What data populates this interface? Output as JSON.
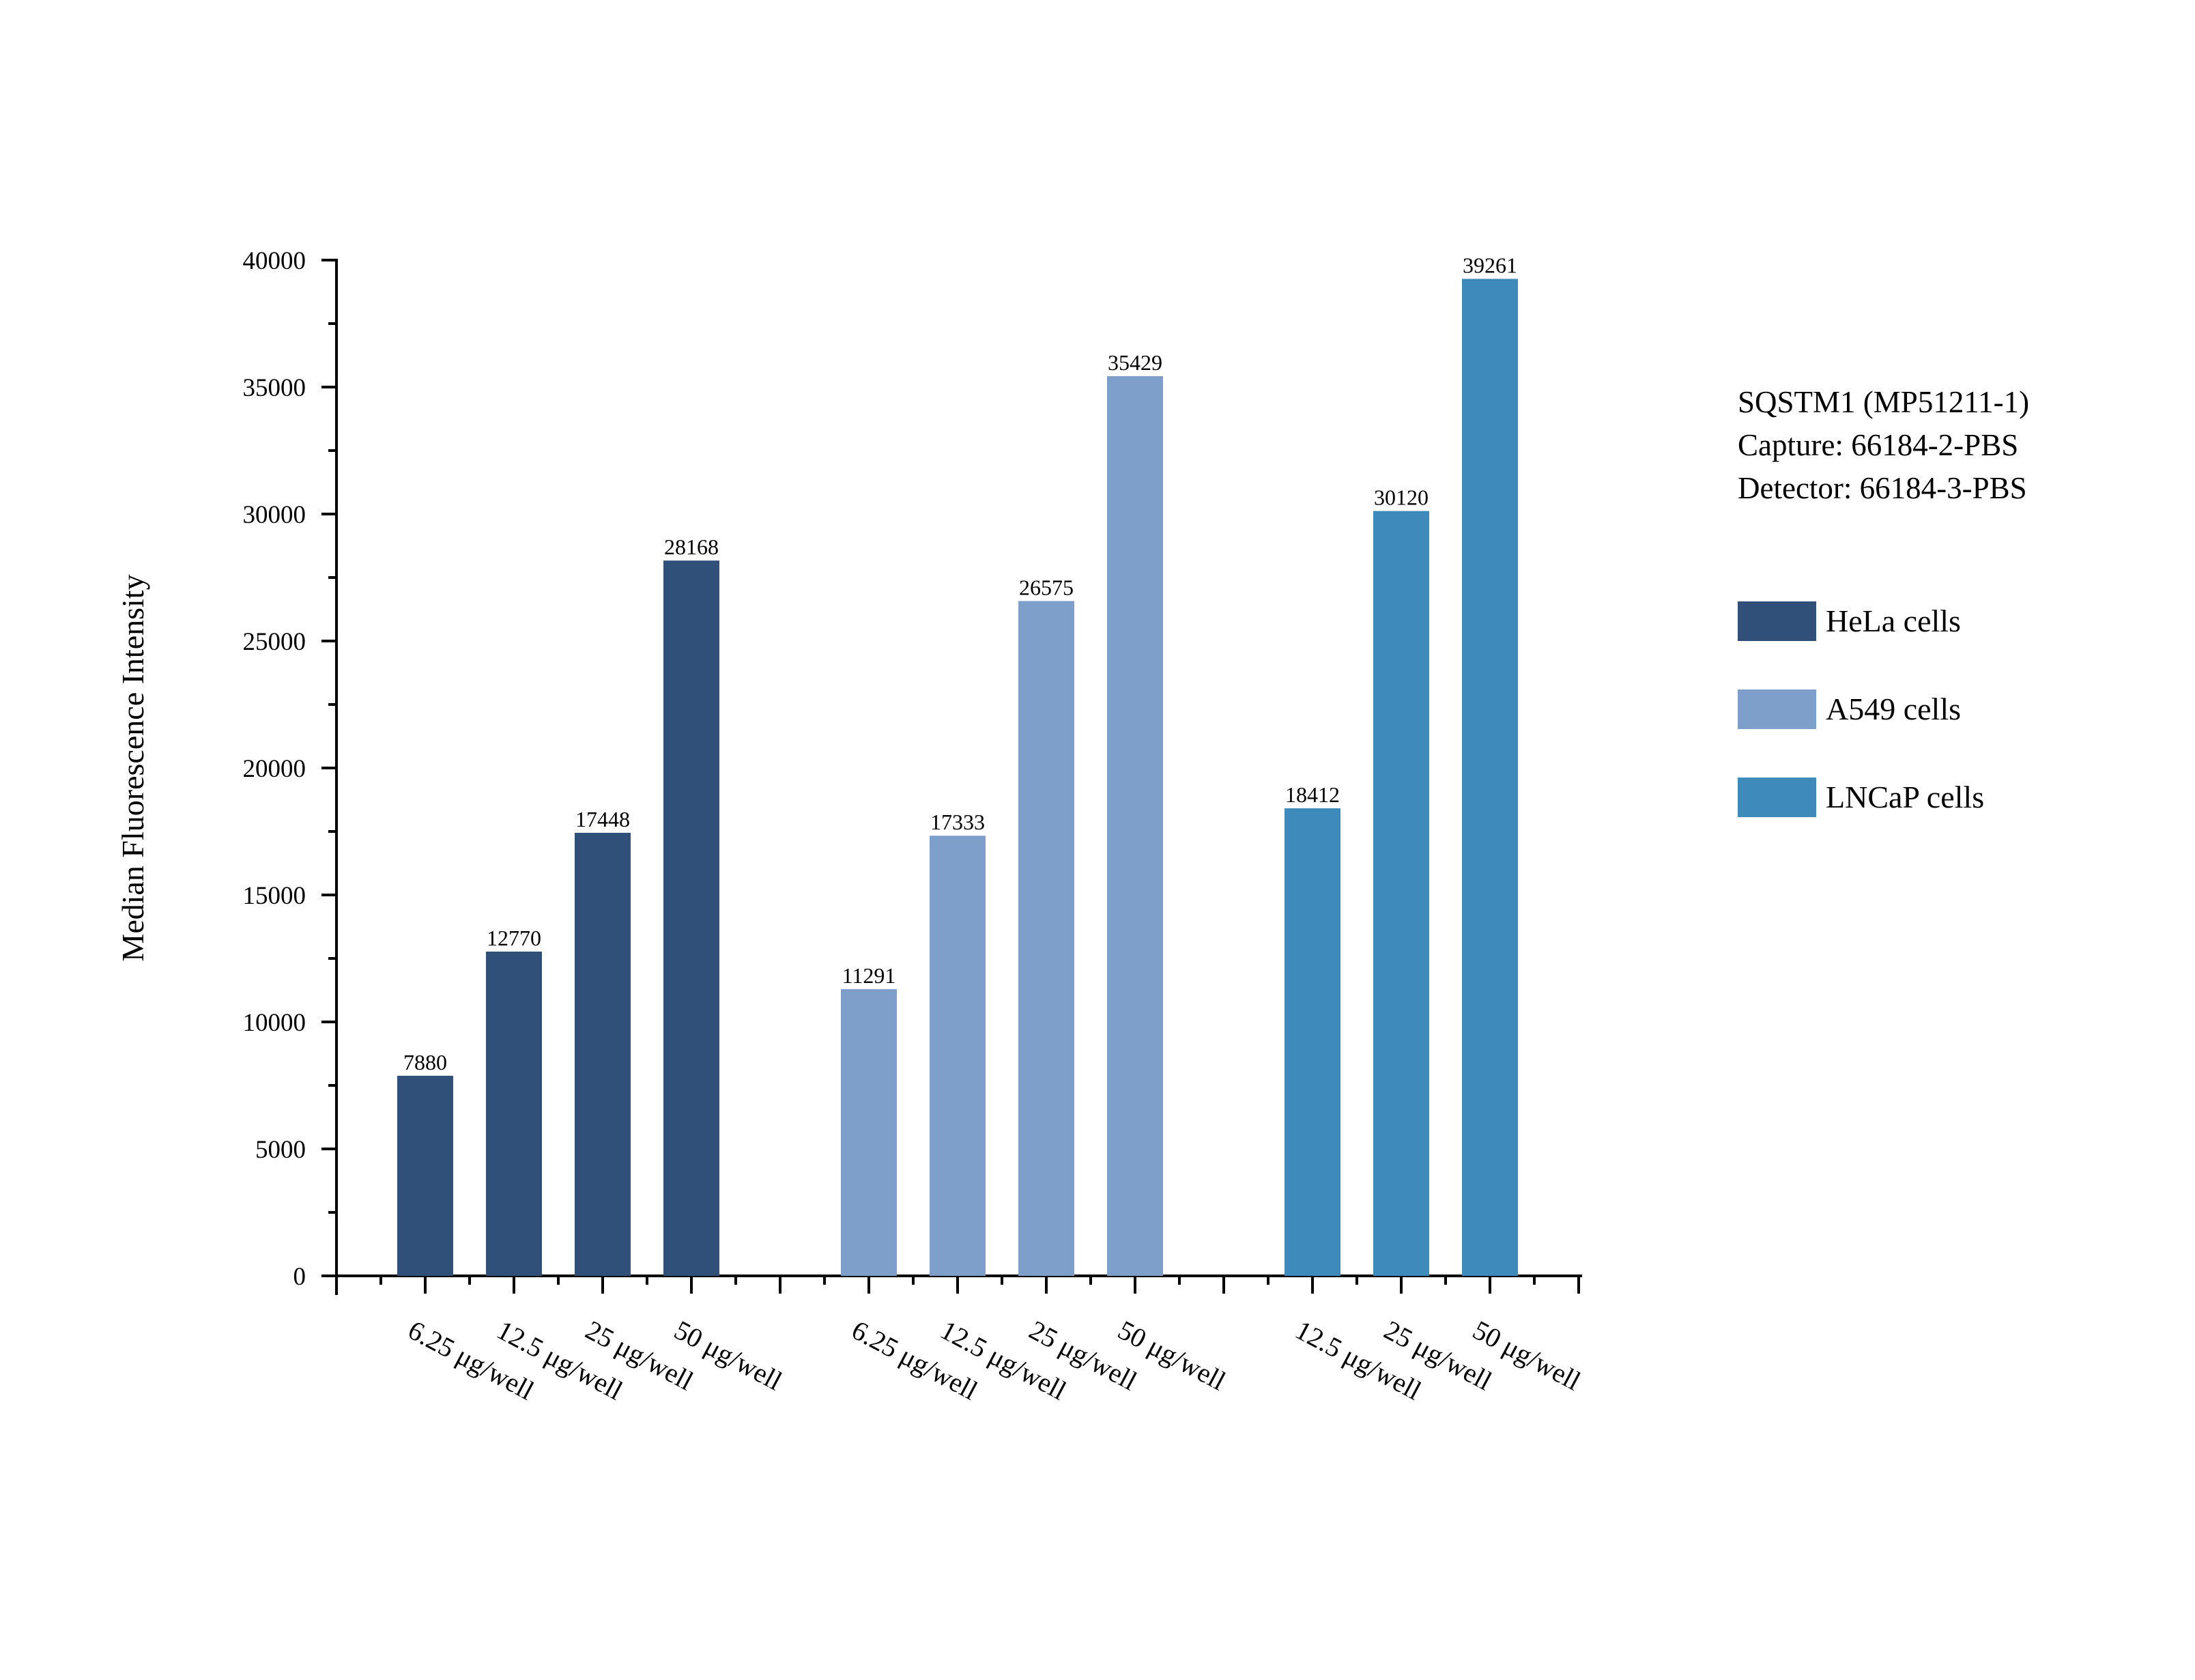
{
  "chart_data": {
    "type": "bar",
    "ylabel": "Median Fluorescence Intensity",
    "xlabel": "",
    "ylim": [
      0,
      40000
    ],
    "yticks": [
      0,
      5000,
      10000,
      15000,
      20000,
      25000,
      30000,
      35000,
      40000
    ],
    "grid": false,
    "legend_position": "right",
    "side_text": [
      "SQSTM1 (MP51211-1)",
      "Capture: 66184-2-PBS",
      "Detector: 66184-3-PBS"
    ],
    "series": [
      {
        "name": "HeLa cells",
        "color": "#30507a",
        "categories": [
          "6.25 μg/well",
          "12.5 μg/well",
          "25 μg/well",
          "50 μg/well"
        ],
        "values": [
          7880,
          12770,
          17448,
          28168
        ]
      },
      {
        "name": "A549 cells",
        "color": "#7f9fcb",
        "categories": [
          "6.25 μg/well",
          "12.5 μg/well",
          "25 μg/well",
          "50 μg/well"
        ],
        "values": [
          11291,
          17333,
          26575,
          35429
        ]
      },
      {
        "name": "LNCaP cells",
        "color": "#3e8aba",
        "categories": [
          "12.5 μg/well",
          "25 μg/well",
          "50 μg/well"
        ],
        "values": [
          18412,
          30120,
          39261
        ]
      }
    ]
  }
}
